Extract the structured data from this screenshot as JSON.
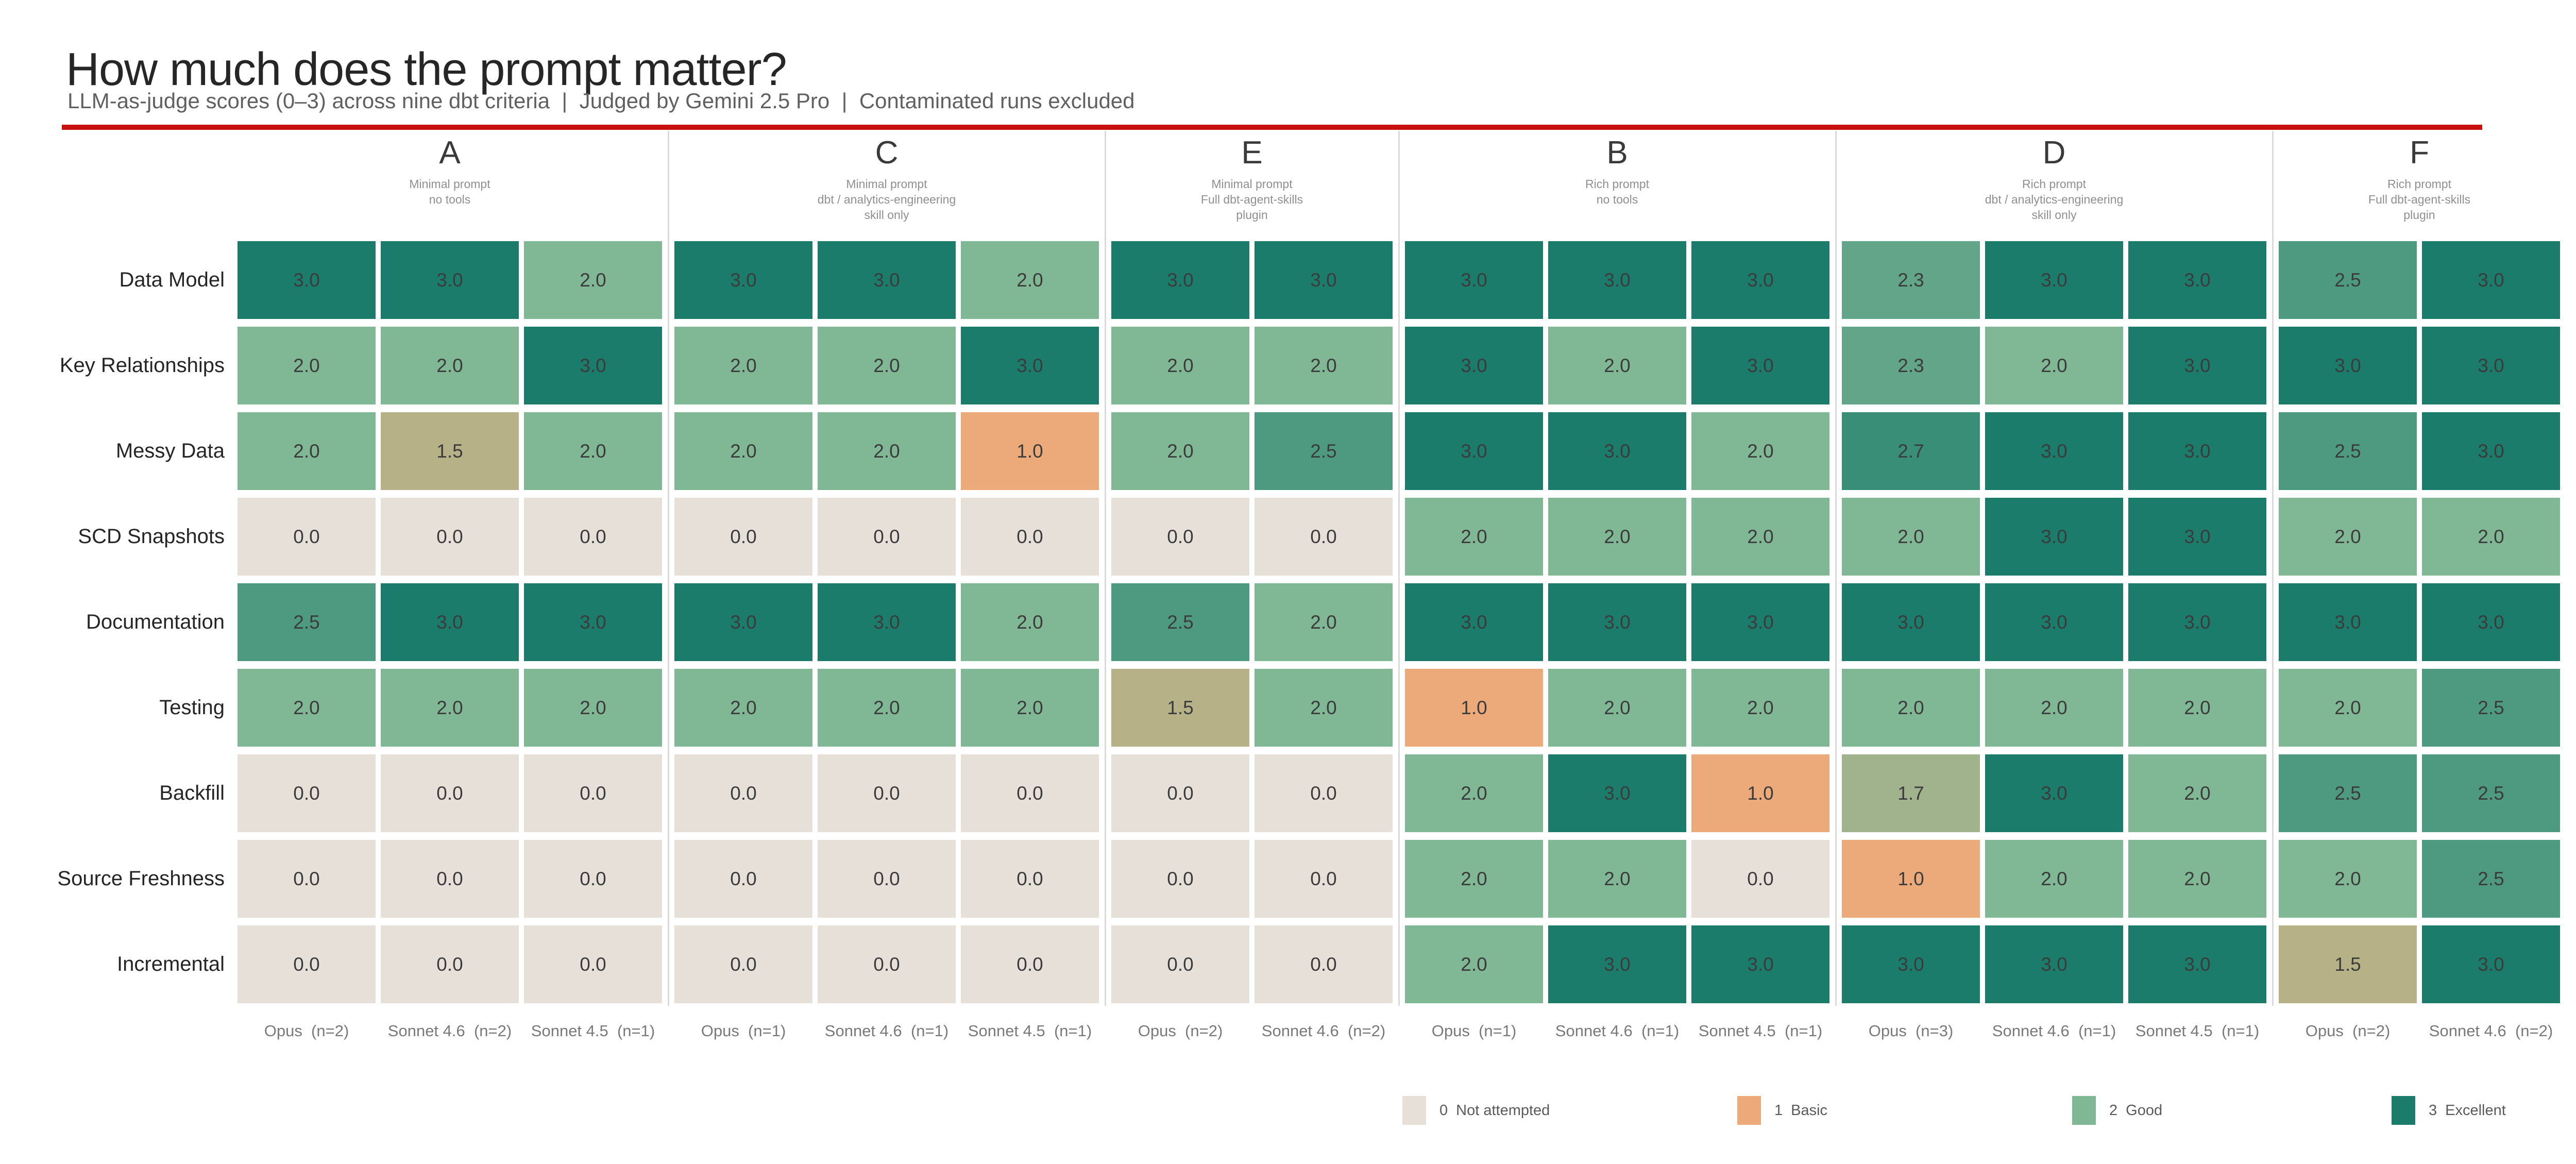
{
  "header": {
    "title": "How much does the prompt matter?",
    "subtitle": "LLM-as-judge scores (0–3) across nine dbt criteria  |  Judged by Gemini 2.5 Pro  |  Contaminated runs excluded"
  },
  "accent_color": "#c81010",
  "chart_data": {
    "type": "heatmap",
    "title": "How much does the prompt matter?",
    "subtitle_segments": [
      "LLM-as-judge scores (0–3) across nine dbt criteria",
      "Judged by Gemini 2.5 Pro",
      "Contaminated runs excluded"
    ],
    "value_range": [
      0,
      3
    ],
    "rows": [
      "Data Model",
      "Key Relationships",
      "Messy Data",
      "SCD Snapshots",
      "Documentation",
      "Testing",
      "Backfill",
      "Source Freshness",
      "Incremental"
    ],
    "groups": [
      {
        "letter": "A",
        "desc": [
          "Minimal prompt",
          "no tools"
        ],
        "columns": [
          {
            "model": "Opus",
            "n": "n=2"
          },
          {
            "model": "Sonnet 4.6",
            "n": "n=2"
          },
          {
            "model": "Sonnet 4.5",
            "n": "n=1"
          }
        ]
      },
      {
        "letter": "C",
        "desc": [
          "Minimal prompt",
          "dbt / analytics-engineering",
          "skill only"
        ],
        "columns": [
          {
            "model": "Opus",
            "n": "n=1"
          },
          {
            "model": "Sonnet 4.6",
            "n": "n=1"
          },
          {
            "model": "Sonnet 4.5",
            "n": "n=1"
          }
        ]
      },
      {
        "letter": "E",
        "desc": [
          "Minimal prompt",
          "Full dbt-agent-skills",
          "plugin"
        ],
        "columns": [
          {
            "model": "Opus",
            "n": "n=2"
          },
          {
            "model": "Sonnet 4.6",
            "n": "n=2"
          }
        ]
      },
      {
        "letter": "B",
        "desc": [
          "Rich prompt",
          "no tools"
        ],
        "columns": [
          {
            "model": "Opus",
            "n": "n=1"
          },
          {
            "model": "Sonnet 4.6",
            "n": "n=1"
          },
          {
            "model": "Sonnet 4.5",
            "n": "n=1"
          }
        ]
      },
      {
        "letter": "D",
        "desc": [
          "Rich prompt",
          "dbt / analytics-engineering",
          "skill only"
        ],
        "columns": [
          {
            "model": "Opus",
            "n": "n=3"
          },
          {
            "model": "Sonnet 4.6",
            "n": "n=1"
          },
          {
            "model": "Sonnet 4.5",
            "n": "n=1"
          }
        ]
      },
      {
        "letter": "F",
        "desc": [
          "Rich prompt",
          "Full dbt-agent-skills",
          "plugin"
        ],
        "columns": [
          {
            "model": "Opus",
            "n": "n=2"
          },
          {
            "model": "Sonnet 4.6",
            "n": "n=2"
          }
        ]
      }
    ],
    "values": [
      [
        3.0,
        3.0,
        2.0,
        3.0,
        3.0,
        2.0,
        3.0,
        3.0,
        3.0,
        3.0,
        3.0,
        2.3,
        3.0,
        3.0,
        2.5,
        3.0
      ],
      [
        2.0,
        2.0,
        3.0,
        2.0,
        2.0,
        3.0,
        2.0,
        2.0,
        3.0,
        2.0,
        3.0,
        2.3,
        2.0,
        3.0,
        3.0,
        3.0
      ],
      [
        2.0,
        1.5,
        2.0,
        2.0,
        2.0,
        1.0,
        2.0,
        2.5,
        3.0,
        3.0,
        2.0,
        2.7,
        3.0,
        3.0,
        2.5,
        3.0
      ],
      [
        0.0,
        0.0,
        0.0,
        0.0,
        0.0,
        0.0,
        0.0,
        0.0,
        2.0,
        2.0,
        2.0,
        2.0,
        3.0,
        3.0,
        2.0,
        2.0
      ],
      [
        2.5,
        3.0,
        3.0,
        3.0,
        3.0,
        2.0,
        2.5,
        2.0,
        3.0,
        3.0,
        3.0,
        3.0,
        3.0,
        3.0,
        3.0,
        3.0
      ],
      [
        2.0,
        2.0,
        2.0,
        2.0,
        2.0,
        2.0,
        1.5,
        2.0,
        1.0,
        2.0,
        2.0,
        2.0,
        2.0,
        2.0,
        2.0,
        2.5
      ],
      [
        0.0,
        0.0,
        0.0,
        0.0,
        0.0,
        0.0,
        0.0,
        0.0,
        2.0,
        3.0,
        1.0,
        1.7,
        3.0,
        2.0,
        2.5,
        2.5
      ],
      [
        0.0,
        0.0,
        0.0,
        0.0,
        0.0,
        0.0,
        0.0,
        0.0,
        2.0,
        2.0,
        0.0,
        1.0,
        2.0,
        2.0,
        2.0,
        2.5
      ],
      [
        0.0,
        0.0,
        0.0,
        0.0,
        0.0,
        0.0,
        0.0,
        0.0,
        2.0,
        3.0,
        3.0,
        3.0,
        3.0,
        3.0,
        1.5,
        3.0
      ]
    ],
    "color_scale": {
      "0": "#e7e0d9",
      "1": "#ecaa7a",
      "2": "#80b794",
      "3": "#1b7c6b"
    },
    "legend": [
      {
        "value": "0",
        "label": "Not attempted",
        "color": "#e7e0d9"
      },
      {
        "value": "1",
        "label": "Basic",
        "color": "#ecaa7a"
      },
      {
        "value": "2",
        "label": "Good",
        "color": "#80b794"
      },
      {
        "value": "3",
        "label": "Excellent",
        "color": "#1b7c6b"
      }
    ],
    "legend_position": "bottom",
    "grid": false
  }
}
